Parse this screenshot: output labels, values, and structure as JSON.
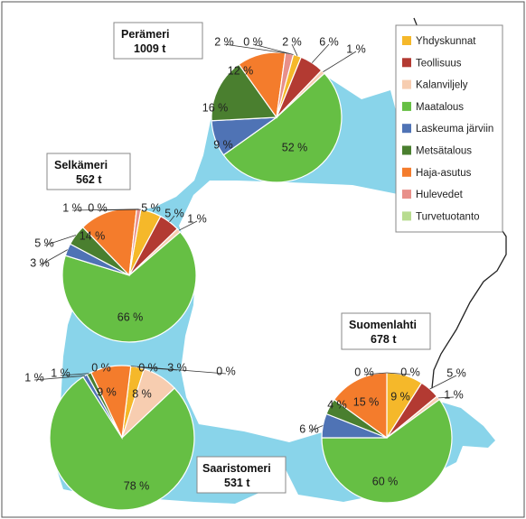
{
  "chart_data": {
    "type": "pie",
    "legend": {
      "placement": "top-right",
      "entries": [
        {
          "name": "Yhdyskunnat",
          "color": "#f5b82a"
        },
        {
          "name": "Teollisuus",
          "color": "#b33a32"
        },
        {
          "name": "Kalanviljely",
          "color": "#f7cdb0"
        },
        {
          "name": "Maatalous",
          "color": "#66bf44"
        },
        {
          "name": "Laskeuma järviin",
          "color": "#4f73b5"
        },
        {
          "name": "Metsätalous",
          "color": "#4a7f2f"
        },
        {
          "name": "Haja-asutus",
          "color": "#f47c2c"
        },
        {
          "name": "Hulevedet",
          "color": "#e8908a"
        },
        {
          "name": "Turvetuotanto",
          "color": "#b8dc8f"
        }
      ]
    },
    "pies": [
      {
        "name": "Perämeri",
        "total": "1009 t",
        "slices": [
          {
            "category": "Yhdyskunnat",
            "value": 2,
            "label": "2 %"
          },
          {
            "category": "Teollisuus",
            "value": 6,
            "label": "6 %"
          },
          {
            "category": "Kalanviljely",
            "value": 1,
            "label": "1 %"
          },
          {
            "category": "Maatalous",
            "value": 52,
            "label": "52 %"
          },
          {
            "category": "Laskeuma järviin",
            "value": 9,
            "label": "9 %"
          },
          {
            "category": "Metsätalous",
            "value": 16,
            "label": "16 %"
          },
          {
            "category": "Haja-asutus",
            "value": 12,
            "label": "12 %"
          },
          {
            "category": "Hulevedet",
            "value": 2,
            "label": "2 %"
          },
          {
            "category": "Turvetuotanto",
            "value": 0,
            "label": "0 %"
          }
        ]
      },
      {
        "name": "Selkämeri",
        "total": "562 t",
        "slices": [
          {
            "category": "Yhdyskunnat",
            "value": 5,
            "label": "5 %"
          },
          {
            "category": "Teollisuus",
            "value": 5,
            "label": "5 %"
          },
          {
            "category": "Kalanviljely",
            "value": 1,
            "label": "1 %"
          },
          {
            "category": "Maatalous",
            "value": 66,
            "label": "66 %"
          },
          {
            "category": "Laskeuma järviin",
            "value": 3,
            "label": "3 %"
          },
          {
            "category": "Metsätalous",
            "value": 5,
            "label": "5 %"
          },
          {
            "category": "Haja-asutus",
            "value": 14,
            "label": "14 %"
          },
          {
            "category": "Hulevedet",
            "value": 1,
            "label": "1 %"
          },
          {
            "category": "Turvetuotanto",
            "value": 0,
            "label": "0 %"
          }
        ]
      },
      {
        "name": "Saaristomeri",
        "total": "531 t",
        "slices": [
          {
            "category": "Yhdyskunnat",
            "value": 3,
            "label": "3 %"
          },
          {
            "category": "Teollisuus",
            "value": 0,
            "label": "0 %"
          },
          {
            "category": "Kalanviljely",
            "value": 8,
            "label": "8 %"
          },
          {
            "category": "Maatalous",
            "value": 78,
            "label": "78 %"
          },
          {
            "category": "Laskeuma järviin",
            "value": 1,
            "label": "1 %"
          },
          {
            "category": "Metsätalous",
            "value": 1,
            "label": "1 %"
          },
          {
            "category": "Haja-asutus",
            "value": 9,
            "label": "9 %"
          },
          {
            "category": "Hulevedet",
            "value": 0,
            "label": "0 %"
          },
          {
            "category": "Turvetuotanto",
            "value": 0,
            "label": "0 %"
          }
        ]
      },
      {
        "name": "Suomenlahti",
        "total": "678 t",
        "slices": [
          {
            "category": "Yhdyskunnat",
            "value": 9,
            "label": "9 %"
          },
          {
            "category": "Teollisuus",
            "value": 5,
            "label": "5 %"
          },
          {
            "category": "Kalanviljely",
            "value": 1,
            "label": "1 %"
          },
          {
            "category": "Maatalous",
            "value": 60,
            "label": "60 %"
          },
          {
            "category": "Laskeuma järviin",
            "value": 6,
            "label": "6 %"
          },
          {
            "category": "Metsätalous",
            "value": 4,
            "label": "4 %"
          },
          {
            "category": "Haja-asutus",
            "value": 15,
            "label": "15 %"
          },
          {
            "category": "Hulevedet",
            "value": 0,
            "label": "0 %"
          },
          {
            "category": "Turvetuotanto",
            "value": 0,
            "label": "0 %"
          }
        ]
      }
    ]
  },
  "map": {
    "sea_color": "#89d4ea",
    "border_color": "#222222"
  }
}
